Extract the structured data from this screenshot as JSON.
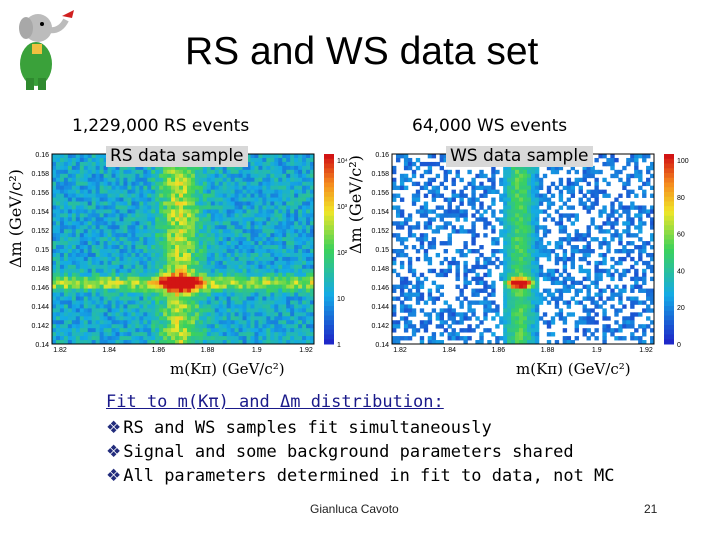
{
  "slide": {
    "title": "RS and WS data set",
    "footer_author": "Gianluca Cavoto",
    "page_number": "21"
  },
  "panels": [
    {
      "header": "1,229,000 RS events",
      "sample_label": "RS data sample",
      "ylabel": "Δm (GeV/c²)",
      "xlabel": "m(Kπ) (GeV/c²)",
      "x_ticks": [
        "1.82",
        "1.84",
        "1.86",
        "1.88",
        "1.9",
        "1.92"
      ],
      "y_ticks": [
        "0.16",
        "0.158",
        "0.156",
        "0.154",
        "0.152",
        "0.15",
        "0.148",
        "0.146",
        "0.144",
        "0.142",
        "0.14"
      ],
      "z_ticks": [
        "10⁴",
        "10³",
        "10²",
        "10",
        "1"
      ],
      "z_scale": "log"
    },
    {
      "header": "64,000 WS events",
      "sample_label": "WS data sample",
      "ylabel": "Δm (GeV/c²)",
      "xlabel": "m(Kπ) (GeV/c²)",
      "x_ticks": [
        "1.82",
        "1.84",
        "1.86",
        "1.88",
        "1.9",
        "1.92"
      ],
      "y_ticks": [
        "0.16",
        "0.158",
        "0.156",
        "0.154",
        "0.152",
        "0.15",
        "0.148",
        "0.146",
        "0.144",
        "0.142",
        "0.14"
      ],
      "z_ticks": [
        "100",
        "80",
        "60",
        "40",
        "20",
        "0"
      ],
      "z_scale": "linear"
    }
  ],
  "fit_text": {
    "heading": "Fit to m(Kπ) and Δm distribution:",
    "items": [
      "RS and WS samples fit simultaneously",
      "Signal and some background parameters shared",
      "All parameters determined in fit to data, not MC"
    ],
    "bullet_glyph": "❖"
  },
  "colors": {
    "heading_blue": "#1a1a8a",
    "bullet_blue": "#222c7c",
    "hist_background_low": "#2433c8",
    "hist_peak": "#c81414"
  },
  "logo_icon": "elephant-logo-icon"
}
